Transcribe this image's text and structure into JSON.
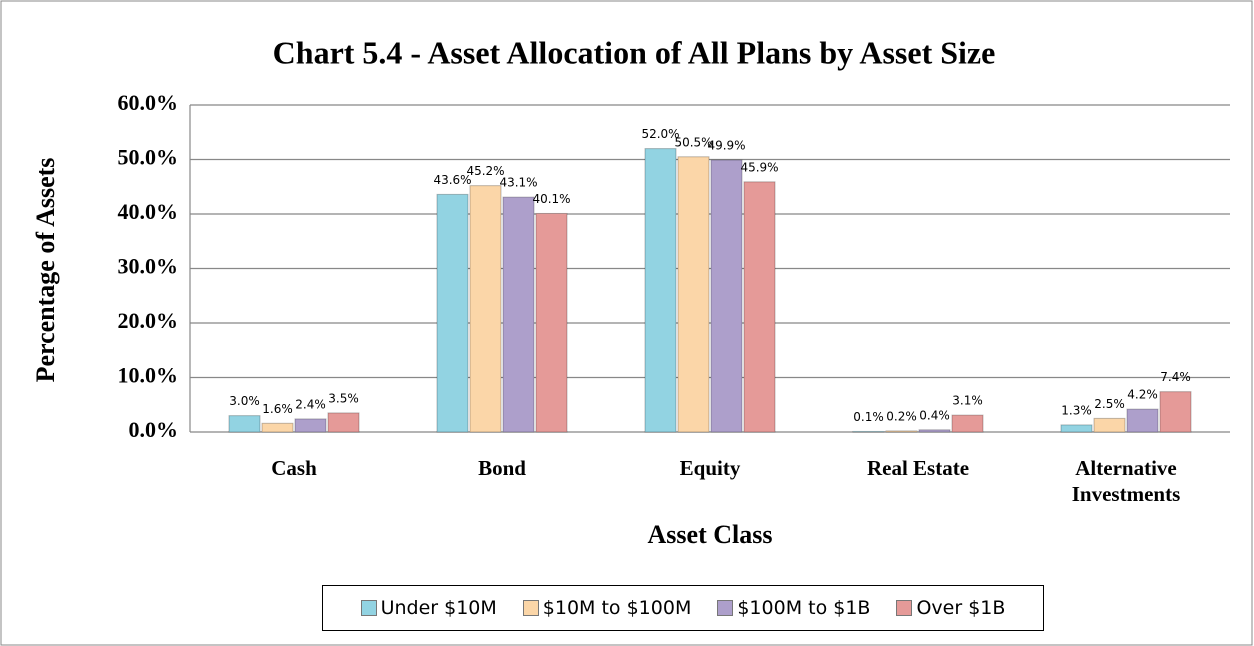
{
  "chart_data": {
    "type": "bar",
    "title": "Chart 5.4 - Asset Allocation of All Plans by Asset Size",
    "x_label": "Asset Class",
    "y_label": "Percentage of Assets",
    "categories": [
      "Cash",
      "Bond",
      "Equity",
      "Real Estate",
      "Alternative Investments"
    ],
    "series": [
      {
        "name": "Under $10M",
        "color": "#92d3e2",
        "values": [
          3.0,
          43.6,
          52.0,
          0.1,
          1.3
        ],
        "value_labels": [
          "3.0%",
          "43.6%",
          "52.0%",
          "0.1%",
          "1.3%"
        ]
      },
      {
        "name": "$10M to $100M",
        "color": "#fbd6a8",
        "values": [
          1.6,
          45.2,
          50.5,
          0.2,
          2.5
        ],
        "value_labels": [
          "1.6%",
          "45.2%",
          "50.5%",
          "0.2%",
          "2.5%"
        ]
      },
      {
        "name": "$100M to $1B",
        "color": "#ad9fcb",
        "values": [
          2.4,
          43.1,
          49.9,
          0.4,
          4.2
        ],
        "value_labels": [
          "2.4%",
          "43.1%",
          "49.9%",
          "0.4%",
          "4.2%"
        ]
      },
      {
        "name": "Over $1B",
        "color": "#e59a98",
        "values": [
          3.5,
          40.1,
          45.9,
          3.1,
          7.4
        ],
        "value_labels": [
          "3.5%",
          "40.1%",
          "45.9%",
          "3.1%",
          "7.4%"
        ]
      }
    ],
    "ylim": [
      0,
      60
    ],
    "yticks": [
      {
        "value": 0,
        "label": "0.0%"
      },
      {
        "value": 10,
        "label": "10.0%"
      },
      {
        "value": 20,
        "label": "20.0%"
      },
      {
        "value": 30,
        "label": "30.0%"
      },
      {
        "value": 40,
        "label": "40.0%"
      },
      {
        "value": 50,
        "label": "50.0%"
      },
      {
        "value": 60,
        "label": "60.0%"
      }
    ],
    "grid": true
  }
}
